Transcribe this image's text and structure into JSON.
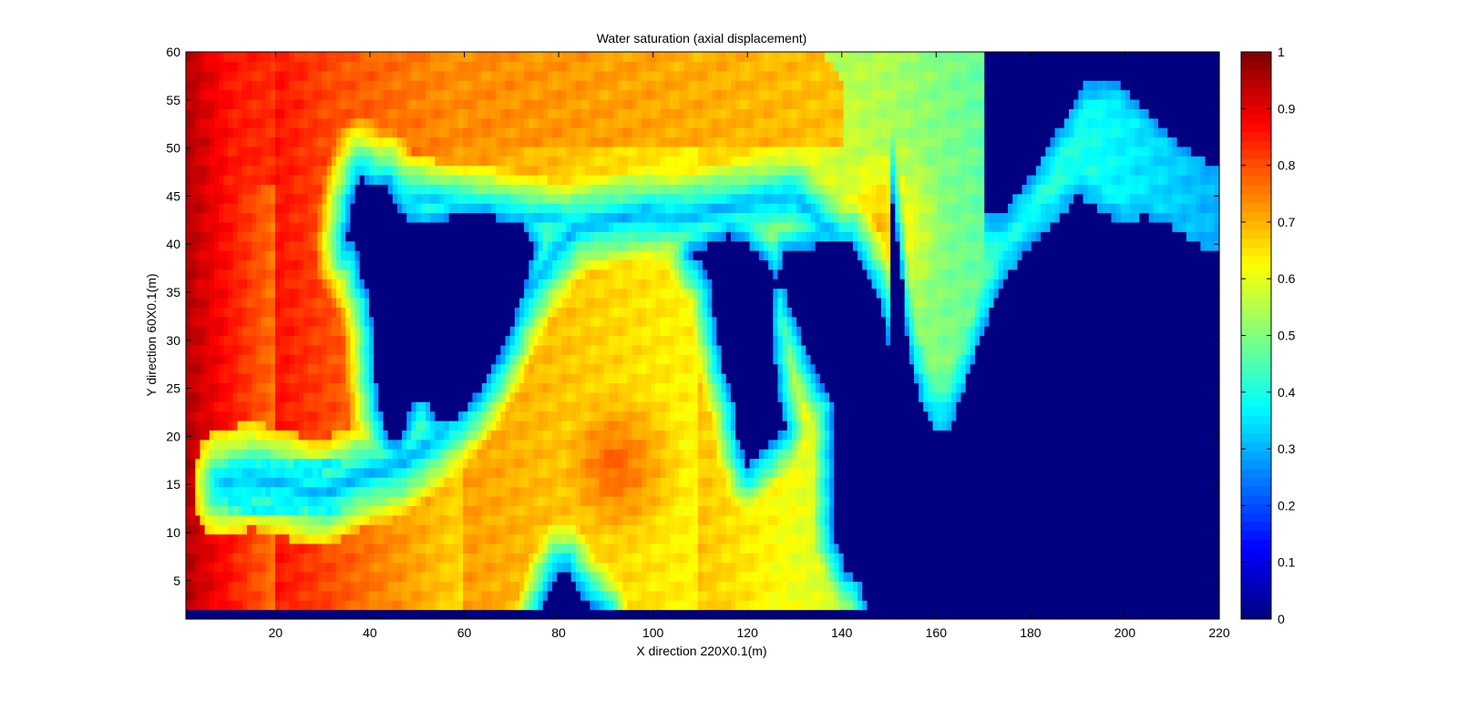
{
  "chart_data": {
    "type": "heatmap",
    "title": "Water saturation (axial displacement)",
    "xlabel": "X direction 220X0.1(m)",
    "ylabel": "Y direction 60X0.1(m)",
    "xlim": [
      1,
      220
    ],
    "ylim": [
      1,
      60
    ],
    "xticks": [
      20,
      40,
      60,
      80,
      100,
      120,
      140,
      160,
      180,
      200,
      220
    ],
    "yticks": [
      5,
      10,
      15,
      20,
      25,
      30,
      35,
      40,
      45,
      50,
      55,
      60
    ],
    "colormap": "jet",
    "clim": [
      0,
      1
    ],
    "colorbar": {
      "location": "right",
      "ticks": [
        0,
        0.1,
        0.2,
        0.3,
        0.4,
        0.5,
        0.6,
        0.7,
        0.8,
        0.9,
        1
      ],
      "tick_labels": [
        "0",
        "0.1",
        "0.2",
        "0.3",
        "0.4",
        "0.5",
        "0.6",
        "0.7",
        "0.8",
        "0.9",
        "1"
      ]
    },
    "grid": false,
    "field_description_points": [
      {
        "x": 5,
        "y": 50,
        "value": 0.95
      },
      {
        "x": 5,
        "y": 5,
        "value": 0.93
      },
      {
        "x": 30,
        "y": 55,
        "value": 0.85
      },
      {
        "x": 100,
        "y": 57,
        "value": 0.72
      },
      {
        "x": 150,
        "y": 40,
        "value": 0.68
      },
      {
        "x": 195,
        "y": 45,
        "value": 0.4
      },
      {
        "x": 90,
        "y": 20,
        "value": 0.75
      },
      {
        "x": 120,
        "y": 10,
        "value": 0.58
      },
      {
        "x": 50,
        "y": 35,
        "value": 0.0
      },
      {
        "x": 125,
        "y": 32,
        "value": 0.0
      },
      {
        "x": 190,
        "y": 15,
        "value": 0.0
      }
    ]
  }
}
